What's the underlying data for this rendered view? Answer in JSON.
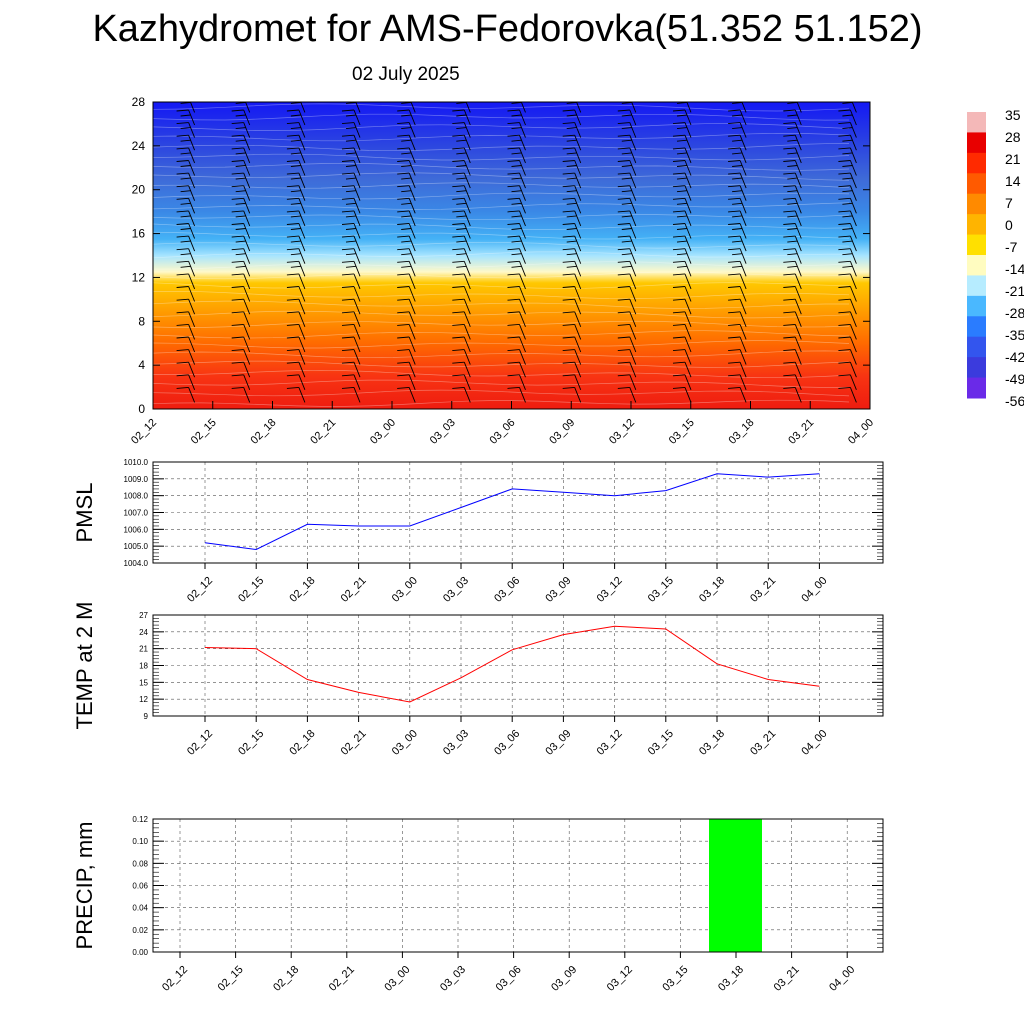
{
  "title": "Kazhydromet for AMS-Fedorovka(51.352 51.152)",
  "subtitle": "02 July 2025",
  "colors": {
    "pmsl_line": "#0000ff",
    "temp_line": "#ff0000",
    "precip_bar": "#00ff00"
  },
  "chart_data": [
    {
      "type": "heatmap",
      "title": "",
      "x_ticks": [
        "02_12",
        "02_15",
        "02_18",
        "02_21",
        "03_00",
        "03_03",
        "03_06",
        "03_09",
        "03_12",
        "03_15",
        "03_18",
        "03_21",
        "04_00"
      ],
      "y_ticks": [
        0,
        4,
        8,
        12,
        16,
        20,
        24,
        28
      ],
      "ylim": [
        0,
        28
      ],
      "colorbar_labels": [
        "35",
        "28",
        "21",
        "14",
        "7",
        "0",
        "-7",
        "-14",
        "-21",
        "-28",
        "-35",
        "-42",
        "-49",
        "-56"
      ],
      "colorbar_colors": [
        "#f4b8b8",
        "#e80000",
        "#ff2a00",
        "#ff5a00",
        "#ff8a00",
        "#ffb400",
        "#ffe000",
        "#fffcc0",
        "#b6ecff",
        "#4ab8ff",
        "#2a7cff",
        "#3355ee",
        "#3b3bdd",
        "#6a2ae8"
      ],
      "vertical_profile": [
        {
          "level": 0,
          "color": "#ee1c10"
        },
        {
          "level": 3,
          "color": "#f83412"
        },
        {
          "level": 6,
          "color": "#ff6a00"
        },
        {
          "level": 9,
          "color": "#ff9e00"
        },
        {
          "level": 11.5,
          "color": "#ffc800"
        },
        {
          "level": 12.5,
          "color": "#fff9c8"
        },
        {
          "level": 14,
          "color": "#a6e4ff"
        },
        {
          "level": 15.5,
          "color": "#44b2f6"
        },
        {
          "level": 18,
          "color": "#3a88e6"
        },
        {
          "level": 21,
          "color": "#3e6ad8"
        },
        {
          "level": 24,
          "color": "#2c46e0"
        },
        {
          "level": 28,
          "color": "#1418f4"
        }
      ],
      "grid": false
    },
    {
      "type": "line",
      "ylabel": "PMSL",
      "x": [
        "02_12",
        "02_15",
        "02_18",
        "02_21",
        "03_00",
        "03_03",
        "03_06",
        "03_09",
        "03_12",
        "03_15",
        "03_18",
        "03_21",
        "04_00"
      ],
      "y": [
        1005.2,
        1004.8,
        1006.3,
        1006.2,
        1006.2,
        1007.3,
        1008.4,
        1008.2,
        1008.0,
        1008.3,
        1009.3,
        1009.1,
        1009.3
      ],
      "ylim": [
        1004.0,
        1010.0
      ],
      "y_ticks": [
        "1004.0",
        "1005.0",
        "1006.0",
        "1007.0",
        "1008.0",
        "1009.0",
        "1010.0"
      ],
      "grid": true
    },
    {
      "type": "line",
      "ylabel": "TEMP at 2 M",
      "x": [
        "02_12",
        "02_15",
        "02_18",
        "02_21",
        "03_00",
        "03_03",
        "03_06",
        "03_09",
        "03_12",
        "03_15",
        "03_18",
        "03_21",
        "04_00"
      ],
      "y": [
        21.2,
        21.0,
        15.5,
        13.2,
        11.5,
        15.8,
        20.8,
        23.5,
        25.0,
        24.5,
        18.3,
        15.5,
        14.3
      ],
      "ylim": [
        9,
        27
      ],
      "y_ticks": [
        "9",
        "12",
        "15",
        "18",
        "21",
        "24",
        "27"
      ],
      "grid": true
    },
    {
      "type": "bar",
      "ylabel": "PRECIP, mm",
      "categories": [
        "02_12",
        "02_15",
        "02_18",
        "02_21",
        "03_00",
        "03_03",
        "03_06",
        "03_09",
        "03_12",
        "03_15",
        "03_18",
        "03_21",
        "04_00"
      ],
      "values": [
        0,
        0,
        0,
        0,
        0,
        0,
        0,
        0,
        0,
        0,
        0.12,
        0,
        0
      ],
      "ylim": [
        0,
        0.12
      ],
      "y_ticks": [
        "0.00",
        "0.02",
        "0.04",
        "0.06",
        "0.08",
        "0.10",
        "0.12"
      ],
      "grid": true
    }
  ]
}
